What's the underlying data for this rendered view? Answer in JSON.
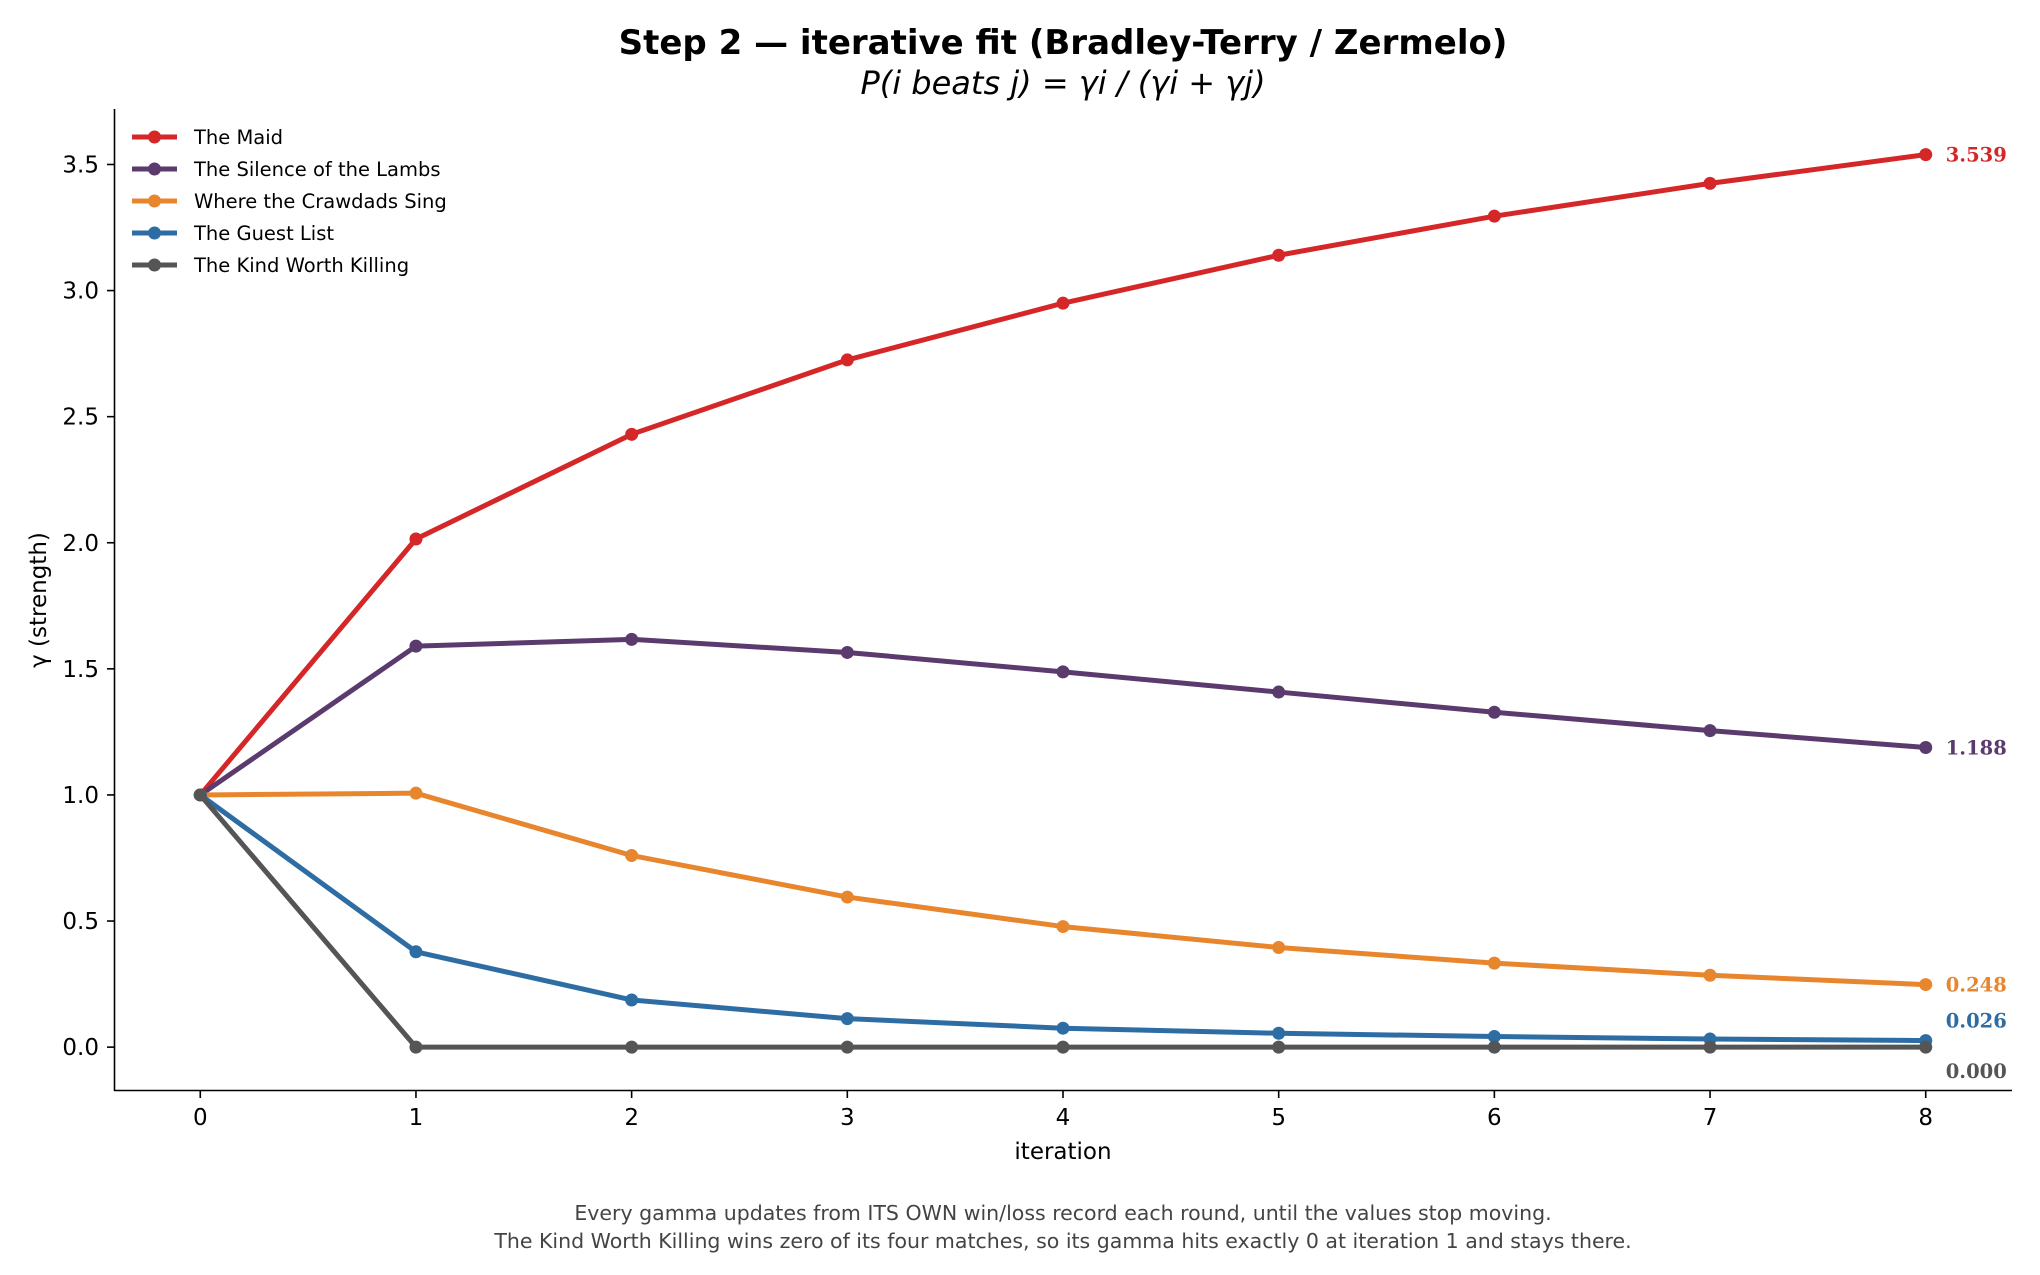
{
  "chart_data": {
    "type": "line",
    "title": "Step 2 — iterative fit (Bradley-Terry / Zermelo)",
    "subtitle": "P(i beats j) = γi / (γi + γj)",
    "xlabel": "iteration",
    "ylabel": "γ (strength)",
    "xlim": [
      -0.4,
      8.4
    ],
    "ylim": [
      -0.17,
      3.72
    ],
    "x": [
      0,
      1,
      2,
      3,
      4,
      5,
      6,
      7,
      8
    ],
    "xticks": [
      "0",
      "1",
      "2",
      "3",
      "4",
      "5",
      "6",
      "7",
      "8"
    ],
    "yticks": [
      "0.0",
      "0.5",
      "1.0",
      "1.5",
      "2.0",
      "2.5",
      "3.0",
      "3.5"
    ],
    "ytick_values": [
      0.0,
      0.5,
      1.0,
      1.5,
      2.0,
      2.5,
      3.0,
      3.5
    ],
    "grid": false,
    "legend_position": "top-left",
    "series": [
      {
        "name": "The Maid",
        "color": "#d62728",
        "values": [
          1.0,
          2.015,
          2.43,
          2.725,
          2.95,
          3.14,
          3.295,
          3.425,
          3.539
        ],
        "end_label": "3.539"
      },
      {
        "name": "The Silence of the Lambs",
        "color": "#5b3a6e",
        "values": [
          1.0,
          1.59,
          1.617,
          1.565,
          1.488,
          1.408,
          1.328,
          1.255,
          1.188
        ],
        "end_label": "1.188"
      },
      {
        "name": "Where the Crawdads Sing",
        "color": "#e8862e",
        "values": [
          1.0,
          1.007,
          0.76,
          0.595,
          0.478,
          0.395,
          0.333,
          0.285,
          0.248
        ],
        "end_label": "0.248"
      },
      {
        "name": "The Guest List",
        "color": "#2e6da4",
        "values": [
          1.0,
          0.378,
          0.187,
          0.113,
          0.075,
          0.055,
          0.042,
          0.032,
          0.026
        ],
        "end_label": "0.026"
      },
      {
        "name": "The Kind Worth Killing",
        "color": "#555555",
        "values": [
          1.0,
          0.0,
          0.0,
          0.0,
          0.0,
          0.0,
          0.0,
          0.0,
          0.0
        ],
        "end_label": "0.000"
      }
    ]
  },
  "footnote": {
    "line1": "Every gamma updates from ITS OWN win/loss record each round, until the values stop moving.",
    "line2": "The Kind Worth Killing wins zero of its four matches, so its gamma hits exactly 0 at iteration 1 and stays there."
  }
}
